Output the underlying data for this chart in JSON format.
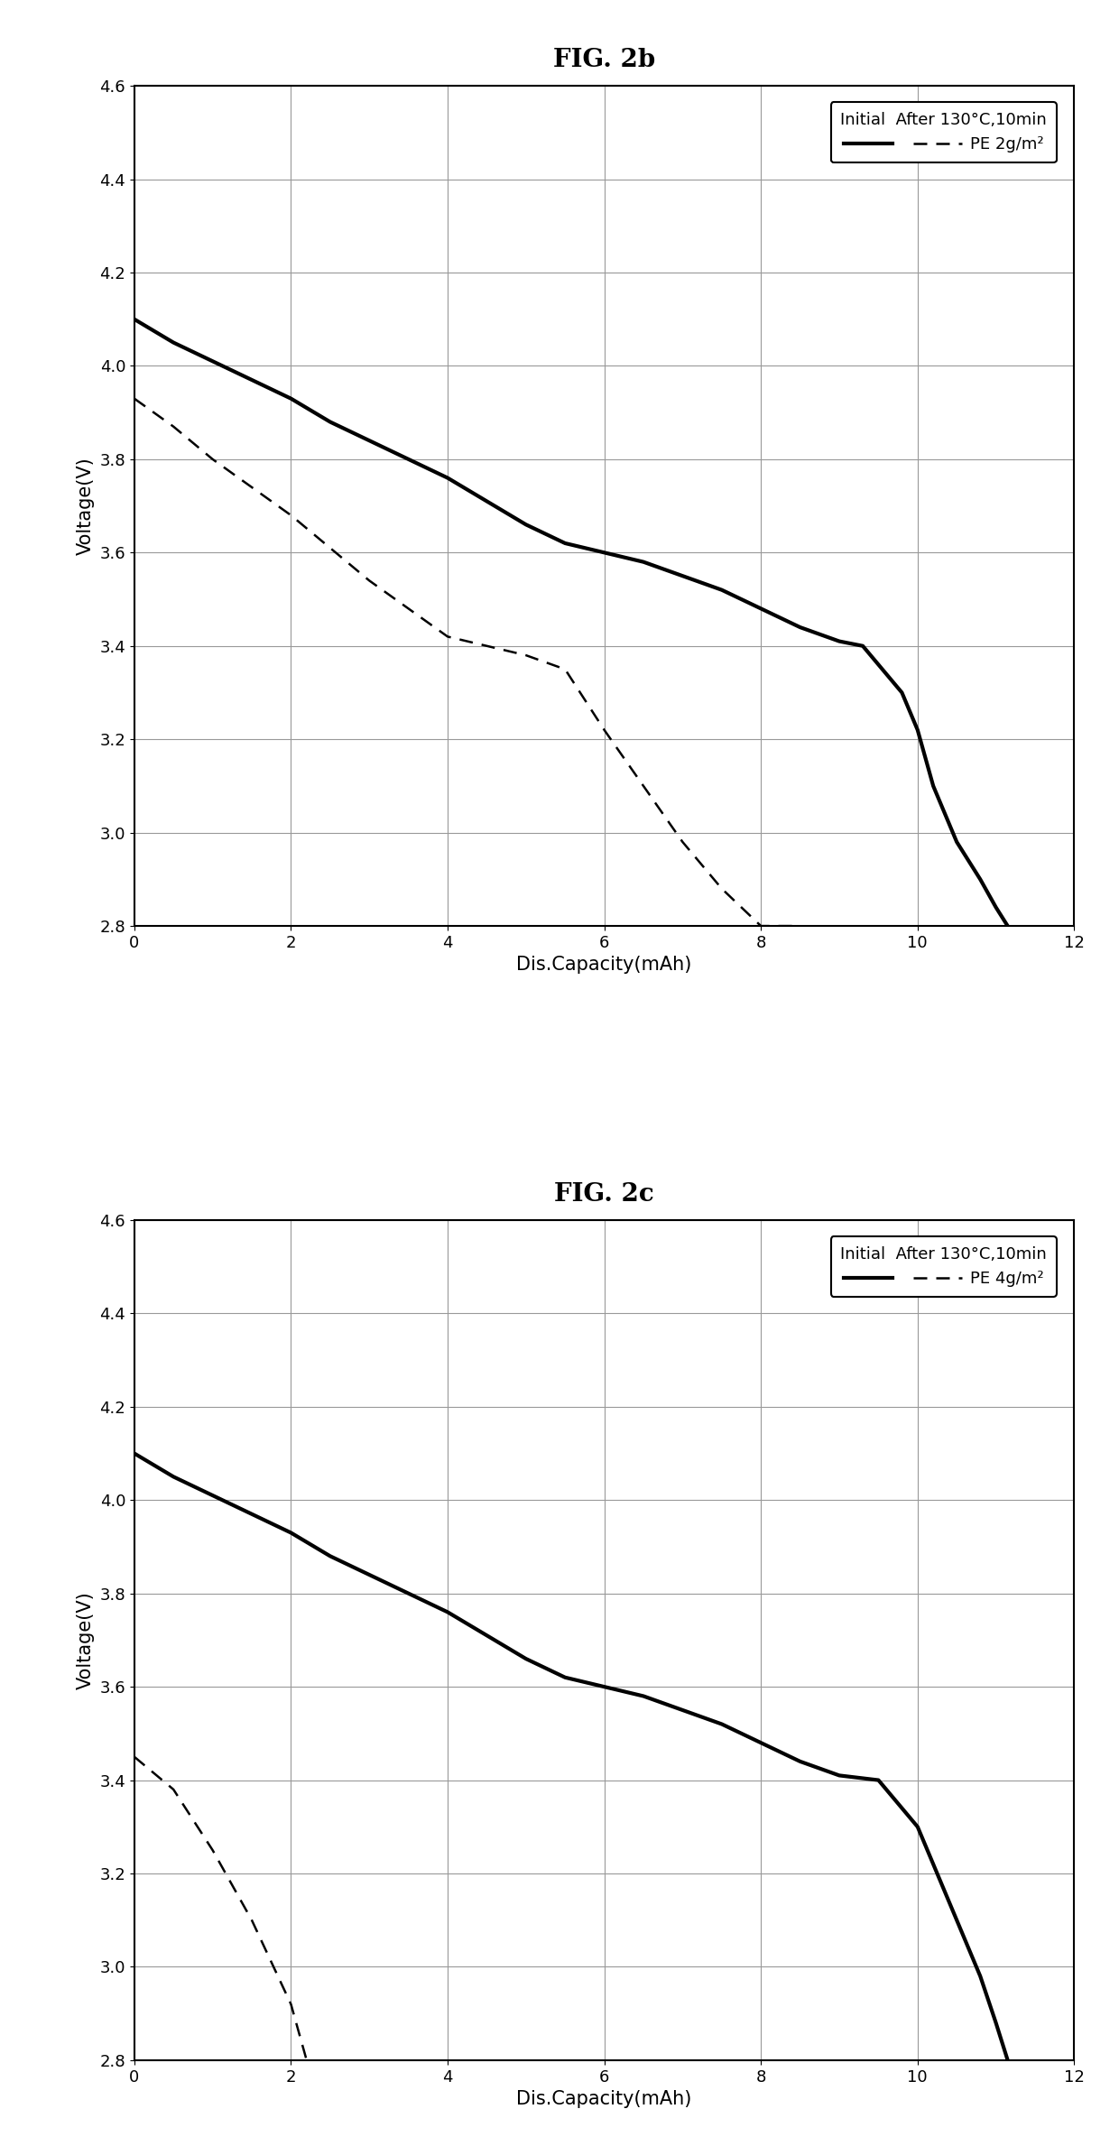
{
  "fig2b_title": "FIG. 2b",
  "fig2c_title": "FIG. 2c",
  "xlabel": "Dis.Capacity(mAh)",
  "ylabel": "Voltage(V)",
  "xlim": [
    0,
    12
  ],
  "ylim": [
    2.8,
    4.6
  ],
  "xticks": [
    0,
    2,
    4,
    6,
    8,
    10,
    12
  ],
  "yticks": [
    2.8,
    3.0,
    3.2,
    3.4,
    3.6,
    3.8,
    4.0,
    4.2,
    4.4,
    4.6
  ],
  "legend_header": "Initial  After 130°C,10min",
  "fig2b_legend_label": "PE 2g/m²",
  "fig2c_legend_label": "PE 4g/m²",
  "fig2b_initial_x": [
    0,
    0.5,
    1.0,
    1.5,
    2.0,
    2.5,
    3.0,
    3.5,
    4.0,
    4.5,
    5.0,
    5.5,
    6.0,
    6.5,
    7.0,
    7.5,
    8.0,
    8.5,
    9.0,
    9.3,
    9.6,
    9.8,
    10.0,
    10.2,
    10.5,
    10.8,
    11.0,
    11.15
  ],
  "fig2b_initial_y": [
    4.1,
    4.05,
    4.01,
    3.97,
    3.93,
    3.88,
    3.84,
    3.8,
    3.76,
    3.71,
    3.66,
    3.62,
    3.6,
    3.58,
    3.55,
    3.52,
    3.48,
    3.44,
    3.41,
    3.4,
    3.34,
    3.3,
    3.22,
    3.1,
    2.98,
    2.9,
    2.84,
    2.8
  ],
  "fig2b_after_x": [
    0,
    0.5,
    1.0,
    1.5,
    2.0,
    2.5,
    3.0,
    3.5,
    4.0,
    4.5,
    5.0,
    5.5,
    6.0,
    6.5,
    7.0,
    7.5,
    8.0,
    8.3,
    8.5
  ],
  "fig2b_after_y": [
    3.93,
    3.87,
    3.8,
    3.74,
    3.68,
    3.61,
    3.54,
    3.48,
    3.42,
    3.4,
    3.38,
    3.35,
    3.22,
    3.1,
    2.98,
    2.88,
    2.8,
    2.8,
    2.8
  ],
  "fig2c_initial_x": [
    0,
    0.5,
    1.0,
    1.5,
    2.0,
    2.5,
    3.0,
    3.5,
    4.0,
    4.5,
    5.0,
    5.5,
    6.0,
    6.5,
    7.0,
    7.5,
    8.0,
    8.5,
    9.0,
    9.5,
    9.8,
    10.0,
    10.2,
    10.5,
    10.8,
    11.0,
    11.15
  ],
  "fig2c_initial_y": [
    4.1,
    4.05,
    4.01,
    3.97,
    3.93,
    3.88,
    3.84,
    3.8,
    3.76,
    3.71,
    3.66,
    3.62,
    3.6,
    3.58,
    3.55,
    3.52,
    3.48,
    3.44,
    3.41,
    3.4,
    3.34,
    3.3,
    3.22,
    3.1,
    2.98,
    2.88,
    2.8
  ],
  "fig2c_after_x": [
    0,
    0.5,
    1.0,
    1.5,
    2.0,
    2.2
  ],
  "fig2c_after_y": [
    3.45,
    3.38,
    3.25,
    3.1,
    2.92,
    2.8
  ],
  "line_color": "#000000",
  "background_color": "#ffffff",
  "title_fontsize": 20,
  "label_fontsize": 15,
  "tick_fontsize": 13,
  "legend_fontsize": 13
}
